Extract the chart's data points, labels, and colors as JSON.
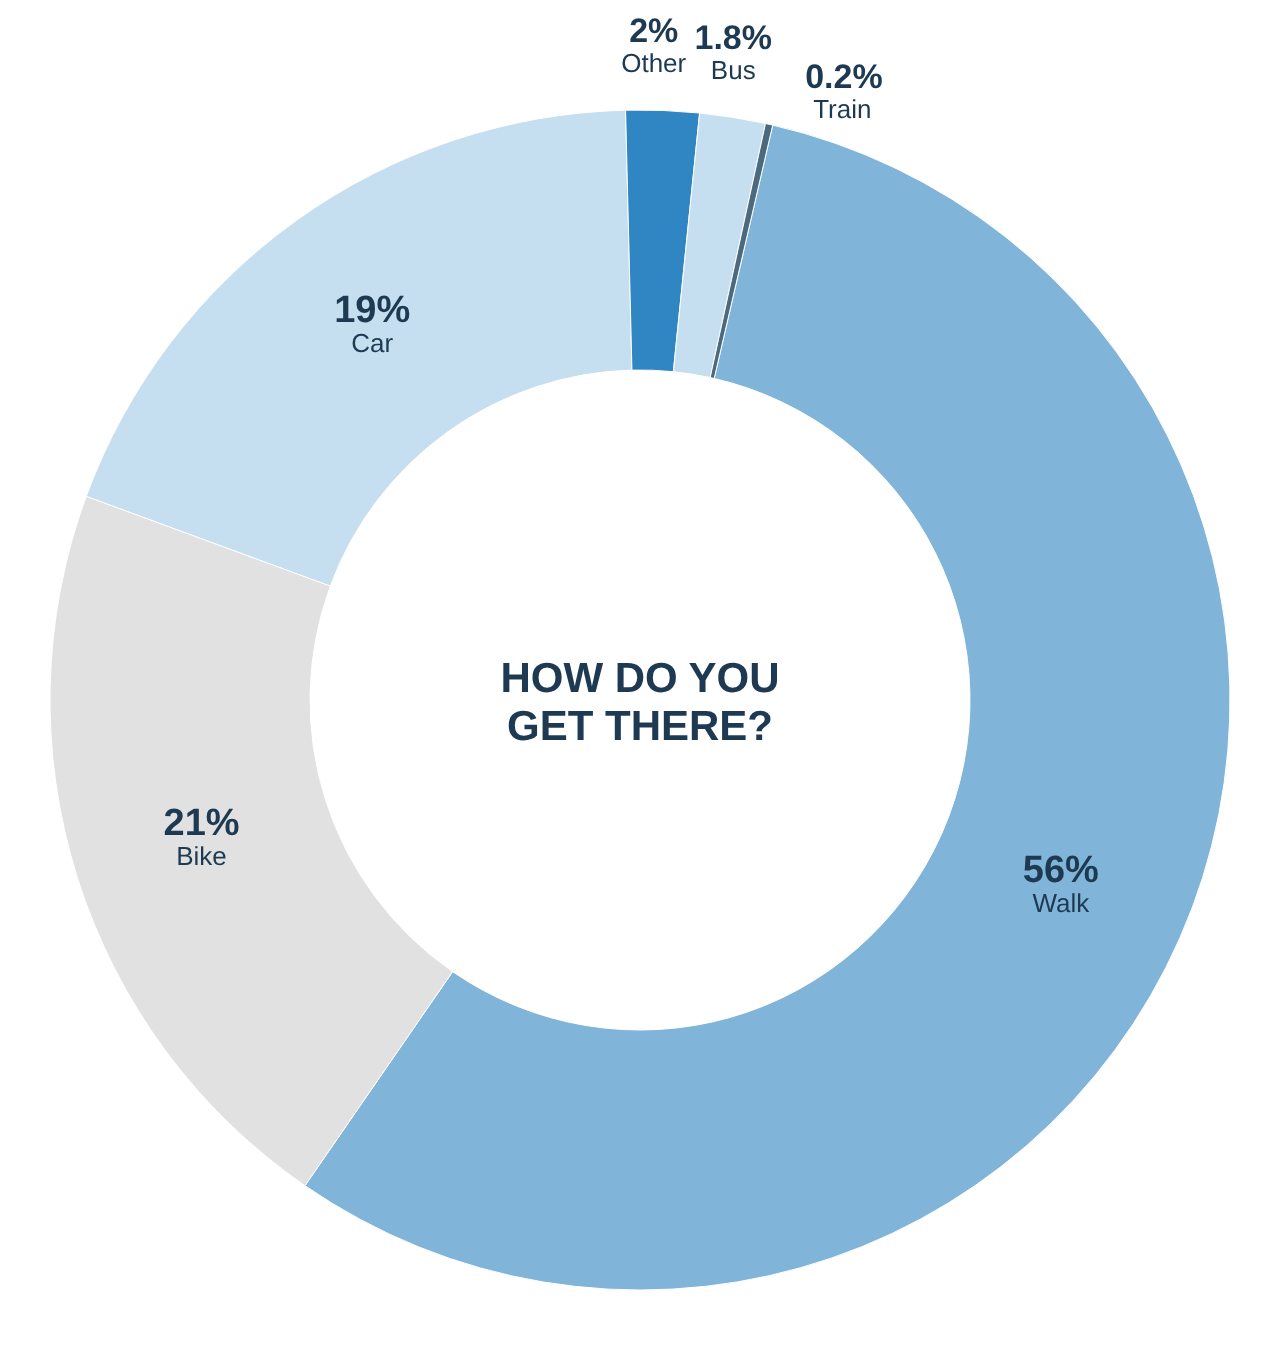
{
  "chart_data": {
    "type": "donut",
    "title": "HOW DO YOU\nGET THERE?",
    "categories": [
      "Walk",
      "Bike",
      "Car",
      "Other",
      "Bus",
      "Train"
    ],
    "values": [
      56,
      21,
      19,
      2,
      1.8,
      0.2
    ],
    "value_labels": [
      "56%",
      "21%",
      "19%",
      "2%",
      "1.8%",
      "0.2%"
    ],
    "colors": [
      "#80b5d9",
      "#e1e1e1",
      "#c5dff0",
      "#2f86c2",
      "#c5dff0",
      "#4b6a80"
    ]
  }
}
